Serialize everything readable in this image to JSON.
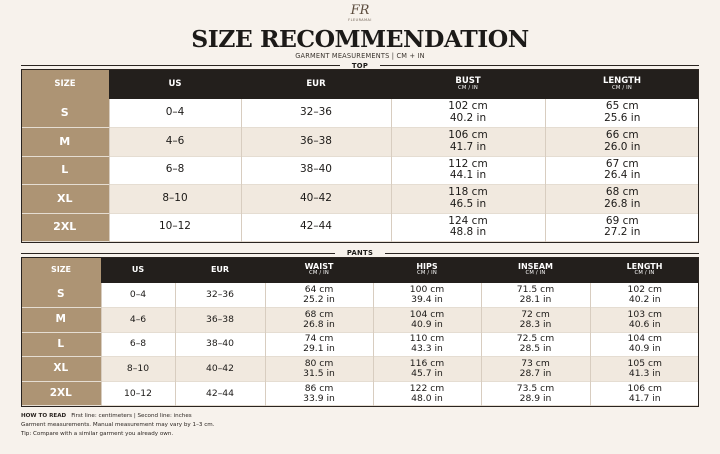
{
  "brand": {
    "monogram": "FR",
    "name": "FLEURAMAI"
  },
  "header": {
    "title": "SIZE RECOMMENDATION",
    "subtitle": "GARMENT MEASUREMENTS | CM + IN"
  },
  "top": {
    "label": "TOP",
    "columns": [
      {
        "main": "SIZE",
        "sub": ""
      },
      {
        "main": "US",
        "sub": ""
      },
      {
        "main": "EUR",
        "sub": ""
      },
      {
        "main": "BUST",
        "sub": "CM / IN"
      },
      {
        "main": "LENGTH",
        "sub": "CM / IN"
      }
    ],
    "rows": [
      {
        "size": "S",
        "us": "0–4",
        "eur": "32–36",
        "bust_cm": "102 cm",
        "bust_in": "40.2 in",
        "length_cm": "65 cm",
        "length_in": "25.6 in"
      },
      {
        "size": "M",
        "us": "4–6",
        "eur": "36–38",
        "bust_cm": "106 cm",
        "bust_in": "41.7 in",
        "length_cm": "66 cm",
        "length_in": "26.0 in"
      },
      {
        "size": "L",
        "us": "6–8",
        "eur": "38–40",
        "bust_cm": "112 cm",
        "bust_in": "44.1 in",
        "length_cm": "67 cm",
        "length_in": "26.4 in"
      },
      {
        "size": "XL",
        "us": "8–10",
        "eur": "40–42",
        "bust_cm": "118 cm",
        "bust_in": "46.5 in",
        "length_cm": "68 cm",
        "length_in": "26.8 in"
      },
      {
        "size": "2XL",
        "us": "10–12",
        "eur": "42–44",
        "bust_cm": "124 cm",
        "bust_in": "48.8 in",
        "length_cm": "69 cm",
        "length_in": "27.2 in"
      }
    ]
  },
  "pants": {
    "label": "PANTS",
    "columns": [
      {
        "main": "SIZE",
        "sub": ""
      },
      {
        "main": "US",
        "sub": ""
      },
      {
        "main": "EUR",
        "sub": ""
      },
      {
        "main": "WAIST",
        "sub": "CM / IN"
      },
      {
        "main": "HIPS",
        "sub": "CM / IN"
      },
      {
        "main": "INSEAM",
        "sub": "CM / IN"
      },
      {
        "main": "LENGTH",
        "sub": "CM / IN"
      }
    ],
    "rows": [
      {
        "size": "S",
        "us": "0–4",
        "eur": "32–36",
        "waist_cm": "64 cm",
        "waist_in": "25.2 in",
        "hips_cm": "100 cm",
        "hips_in": "39.4 in",
        "inseam_cm": "71.5 cm",
        "inseam_in": "28.1 in",
        "length_cm": "102 cm",
        "length_in": "40.2 in"
      },
      {
        "size": "M",
        "us": "4–6",
        "eur": "36–38",
        "waist_cm": "68 cm",
        "waist_in": "26.8 in",
        "hips_cm": "104 cm",
        "hips_in": "40.9 in",
        "inseam_cm": "72 cm",
        "inseam_in": "28.3 in",
        "length_cm": "103 cm",
        "length_in": "40.6 in"
      },
      {
        "size": "L",
        "us": "6–8",
        "eur": "38–40",
        "waist_cm": "74 cm",
        "waist_in": "29.1 in",
        "hips_cm": "110 cm",
        "hips_in": "43.3 in",
        "inseam_cm": "72.5 cm",
        "inseam_in": "28.5 in",
        "length_cm": "104 cm",
        "length_in": "40.9 in"
      },
      {
        "size": "XL",
        "us": "8–10",
        "eur": "40–42",
        "waist_cm": "80 cm",
        "waist_in": "31.5 in",
        "hips_cm": "116 cm",
        "hips_in": "45.7 in",
        "inseam_cm": "73 cm",
        "inseam_in": "28.7 in",
        "length_cm": "105 cm",
        "length_in": "41.3 in"
      },
      {
        "size": "2XL",
        "us": "10–12",
        "eur": "42–44",
        "waist_cm": "86 cm",
        "waist_in": "33.9 in",
        "hips_cm": "122 cm",
        "hips_in": "48.0 in",
        "inseam_cm": "73.5 cm",
        "inseam_in": "28.9 in",
        "length_cm": "106 cm",
        "length_in": "41.7 in"
      }
    ]
  },
  "footer": {
    "how_to_read_label": "HOW TO READ",
    "how_to_read_text": "First line: centimeters  |  Second line: inches",
    "note": "Garment measurements. Manual measurement may vary by 1–3 cm.",
    "tip": "Tip: Compare with a similar garment you already own."
  },
  "colors": {
    "background": "#f7f2ec",
    "header_dark": "#231f1c",
    "size_column": "#ad9474",
    "row_alt": "#f1e9df"
  }
}
